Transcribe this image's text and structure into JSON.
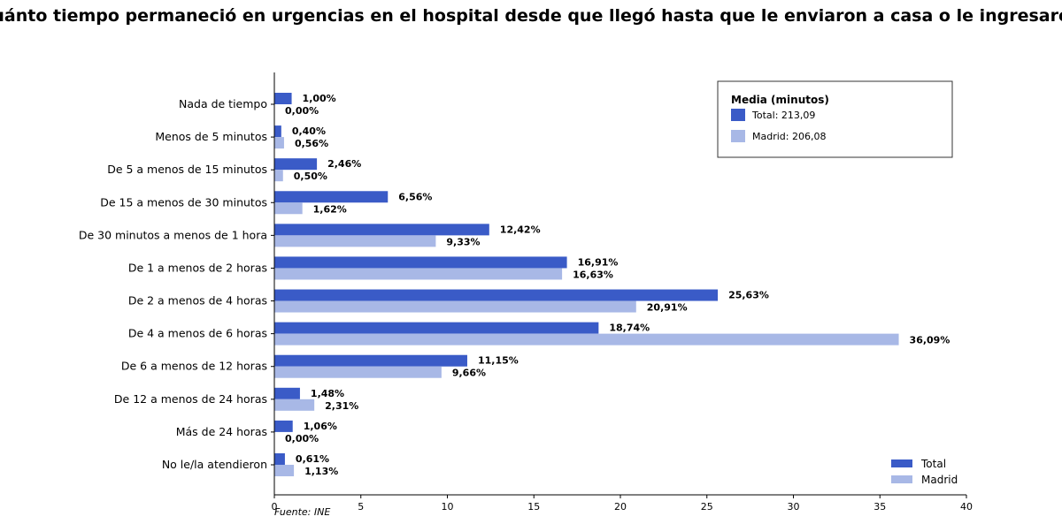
{
  "chart_data": {
    "type": "bar",
    "orientation": "horizontal",
    "title": "¿Cuánto tiempo permaneció en urgencias en el hospital desde que llegó hasta que le enviaron a casa o le ingresaron?",
    "source": "Fuente: INE",
    "categories": [
      "Nada de tiempo",
      "Menos de 5 minutos",
      "De 5 a menos de 15 minutos",
      "De 15 a menos de 30 minutos",
      "De 30 minutos a menos de 1 hora",
      "De 1 a menos de 2 horas",
      "De 2 a menos de 4 horas",
      "De 4 a menos de 6 horas",
      "De 6 a menos de 12 horas",
      "De 12 a menos de 24 horas",
      "Más de 24 horas",
      "No le/la atendieron"
    ],
    "series": [
      {
        "name": "Total",
        "color": "#3a5bc7",
        "values": [
          1.0,
          0.4,
          2.46,
          6.56,
          12.42,
          16.91,
          25.63,
          18.74,
          11.15,
          1.48,
          1.06,
          0.61
        ],
        "labels": [
          "1,00%",
          "0,40%",
          "2,46%",
          "6,56%",
          "12,42%",
          "16,91%",
          "25,63%",
          "18,74%",
          "11,15%",
          "1,48%",
          "1,06%",
          "0,61%"
        ]
      },
      {
        "name": "Madrid",
        "color": "#a8b8e6",
        "values": [
          0.0,
          0.56,
          0.5,
          1.62,
          9.33,
          16.63,
          20.91,
          36.09,
          9.66,
          2.31,
          0.0,
          1.13
        ],
        "labels": [
          "0,00%",
          "0,56%",
          "0,50%",
          "1,62%",
          "9,33%",
          "16,63%",
          "20,91%",
          "36,09%",
          "9,66%",
          "2,31%",
          "0,00%",
          "1,13%"
        ]
      }
    ],
    "xlim": [
      0,
      40
    ],
    "xticks": [
      "0",
      "5",
      "10",
      "15",
      "20",
      "25",
      "30",
      "35",
      "40"
    ],
    "grid": false,
    "legend": {
      "placement": "bottom-right",
      "entries": [
        "Total",
        "Madrid"
      ]
    },
    "info_box": {
      "placement": "top-right",
      "title": "Media (minutos)",
      "entries": [
        "Total: 213,09",
        "Madrid: 206,08"
      ]
    }
  }
}
